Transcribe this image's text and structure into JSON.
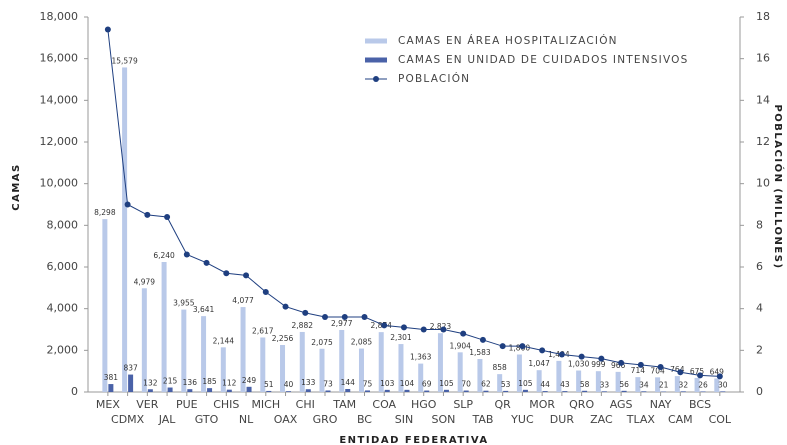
{
  "chart_data": {
    "type": "bar",
    "x_label": "ENTIDAD FEDERATIVA",
    "y_label": "CAMAS",
    "y2_label": "POBLACIÓN (MILLONES)",
    "categories": [
      "MEX",
      "CDMX",
      "VER",
      "JAL",
      "PUE",
      "GTO",
      "CHIS",
      "NL",
      "MICH",
      "OAX",
      "CHI",
      "GRO",
      "TAM",
      "BC",
      "COA",
      "SIN",
      "HGO",
      "SON",
      "SLP",
      "TAB",
      "QR",
      "YUC",
      "MOR",
      "DUR",
      "QRO",
      "ZAC",
      "AGS",
      "TLAX",
      "NAY",
      "CAM",
      "BCS",
      "COL"
    ],
    "series": [
      {
        "name": "CAMAS EN ÁREA HOSPITALIZACIÓN",
        "type": "bar",
        "color": "#b9c9e9",
        "values": [
          8298,
          15579,
          4979,
          6240,
          3955,
          3641,
          2144,
          4077,
          2617,
          2256,
          2882,
          2075,
          2977,
          2085,
          2874,
          2301,
          1363,
          2823,
          1904,
          1583,
          858,
          1800,
          1047,
          1494,
          1030,
          999,
          966,
          714,
          704,
          764,
          675,
          649
        ],
        "value_labels": [
          "8,298",
          "15,579",
          "4,979",
          "6,240",
          "3,955",
          "3,641",
          "2,144",
          "4,077",
          "2,617",
          "2,256",
          "2,882",
          "2,075",
          "2,977",
          "2,085",
          "2,874",
          "2,301",
          "1,363",
          "2,823",
          "1,904",
          "1,583",
          "858",
          "1,800",
          "1,047",
          "1,494",
          "1,030",
          "999",
          "966",
          "714",
          "704",
          "764",
          "675",
          "649"
        ]
      },
      {
        "name": "CAMAS EN UNIDAD DE CUIDADOS INTENSIVOS",
        "type": "bar",
        "color": "#4a62a8",
        "values": [
          381,
          837,
          132,
          215,
          136,
          185,
          112,
          249,
          51,
          40,
          133,
          73,
          144,
          75,
          103,
          104,
          69,
          105,
          70,
          62,
          53,
          105,
          44,
          43,
          58,
          33,
          56,
          34,
          21,
          32,
          26,
          30
        ]
      },
      {
        "name": "POBLACIÓN",
        "type": "line",
        "axis": "y2",
        "color": "#1f3f80",
        "values": [
          17.4,
          9.0,
          8.5,
          8.4,
          6.6,
          6.2,
          5.7,
          5.6,
          4.8,
          4.1,
          3.8,
          3.6,
          3.6,
          3.6,
          3.2,
          3.1,
          3.0,
          3.0,
          2.8,
          2.5,
          2.2,
          2.2,
          2.0,
          1.8,
          1.7,
          1.6,
          1.4,
          1.3,
          1.2,
          0.95,
          0.8,
          0.75
        ]
      }
    ],
    "ylim": [
      0,
      18000
    ],
    "yticks": [
      0,
      {
        "value": 2000,
        "label": "2,000"
      },
      {
        "value": 4000,
        "label": "4,000"
      },
      {
        "value": 6000,
        "label": "6,000"
      },
      {
        "value": 8000,
        "label": "8,000"
      },
      {
        "value": 10000,
        "label": "10,000"
      },
      {
        "value": 12000,
        "label": "12,000"
      },
      {
        "value": 14000,
        "label": "14,000"
      },
      {
        "value": 16000,
        "label": "16,000"
      },
      {
        "value": 18000,
        "label": "18,000"
      }
    ],
    "y2lim": [
      0,
      18
    ],
    "y2ticks": [
      0,
      2,
      4,
      6,
      8,
      10,
      12,
      14,
      16,
      18
    ],
    "grid": false
  }
}
